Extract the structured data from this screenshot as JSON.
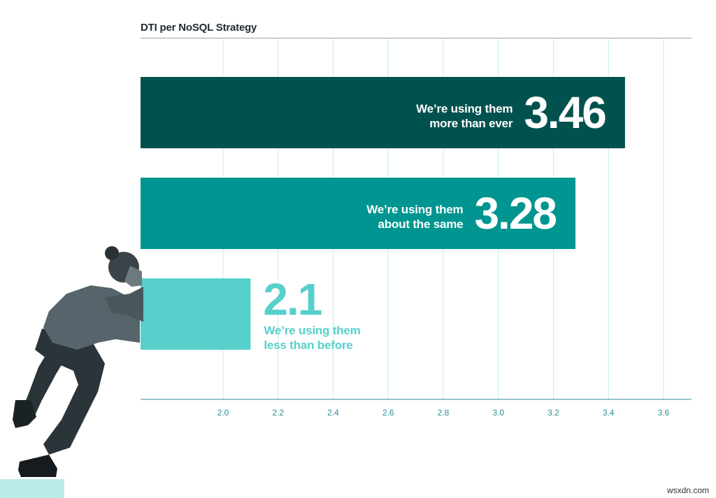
{
  "chart_data": {
    "type": "bar",
    "orientation": "horizontal",
    "title": "DTI per NoSQL Strategy",
    "xlabel": "",
    "ylabel": "",
    "xlim": [
      1.6,
      3.6
    ],
    "x_ticks": [
      2.0,
      2.2,
      2.4,
      2.6,
      2.8,
      3.0,
      3.2,
      3.4,
      3.6
    ],
    "x_tick_labels": [
      "2.0",
      "2.2",
      "2.4",
      "2.6",
      "2.8",
      "3.0",
      "3.2",
      "3.4",
      "3.6"
    ],
    "grid": true,
    "categories": [
      "We're using them more than ever",
      "We're using them about the same",
      "We're using them less than before"
    ],
    "values": [
      3.46,
      3.28,
      2.1
    ],
    "bars": [
      {
        "value": 3.46,
        "value_label": "3.46",
        "label_lines": [
          "We’re using them",
          "more than ever"
        ],
        "color": "#01524e",
        "label_position": "inside"
      },
      {
        "value": 3.28,
        "value_label": "3.28",
        "label_lines": [
          "We’re using them",
          "about the same"
        ],
        "color": "#009590",
        "label_position": "inside"
      },
      {
        "value": 2.1,
        "value_label": "2.1",
        "label_lines": [
          "We’re using them",
          "less than before"
        ],
        "color": "#57d0cc",
        "label_position": "outside"
      }
    ]
  },
  "colors": {
    "grid": "#c6ece9",
    "axis": "#2a8f98",
    "accent_light": "#bdebe8"
  },
  "decoration": {
    "image": "person-pushing-bar-illustration"
  },
  "watermark": "wsxdn.com"
}
